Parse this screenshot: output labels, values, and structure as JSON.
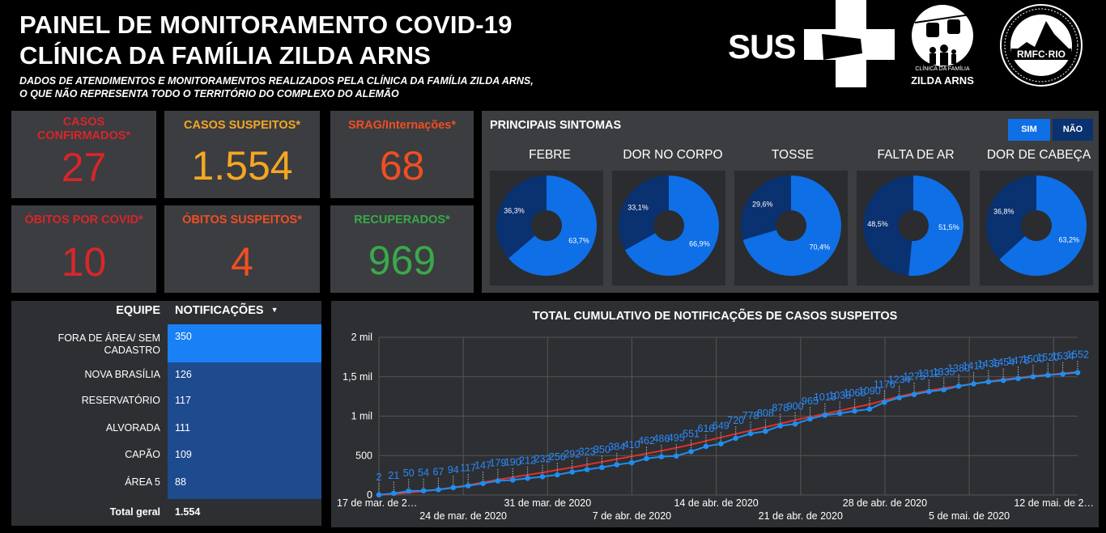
{
  "header": {
    "title_line1": "PAINEL DE MONITORAMENTO COVID-19",
    "title_line2": "CLÍNICA DA FAMÍLIA ZILDA ARNS",
    "subtitle_line1": "DADOS DE ATENDIMENTOS E MONITORAMENTOS REALIZADOS PELA CLÍNICA DA FAMÍLIA ZILDA ARNS,",
    "subtitle_line2": "O QUE NÃO REPRESENTA TODO O TERRITÓRIO DO COMPLEXO DO ALEMÃO"
  },
  "logos": {
    "sus": "SUS",
    "cf_small": "CLÍNICA DA FAMÍLIA",
    "cf_name": "ZILDA ARNS",
    "rmfc": "RMFC·RIO"
  },
  "kpis": [
    {
      "label": "CASOS CONFIRMADOS*",
      "value": "27",
      "color": "#d7262b"
    },
    {
      "label": "CASOS SUSPEITOS*",
      "value": "1.554",
      "color": "#f5a623"
    },
    {
      "label": "SRAG/Internações*",
      "value": "68",
      "color": "#f04e23"
    },
    {
      "label": "ÓBITOS POR COVID*",
      "value": "10",
      "color": "#d7262b"
    },
    {
      "label": "ÓBITOS SUSPEITOS*",
      "value": "4",
      "color": "#f04e23"
    },
    {
      "label": "RECUPERADOS*",
      "value": "969",
      "color": "#3aa84b"
    }
  ],
  "symptoms": {
    "title": "PRINCIPAIS SINTOMAS",
    "toggle_yes": "SIM",
    "toggle_no": "NÃO",
    "colors": {
      "sim": "#0f6fe6",
      "nao": "#0a3170"
    },
    "items": [
      {
        "label": "FEBRE",
        "sim": 63.7,
        "nao": 36.3,
        "sim_text": "63,7%",
        "nao_text": "36,3%"
      },
      {
        "label": "DOR NO CORPO",
        "sim": 66.9,
        "nao": 33.1,
        "sim_text": "66,9%",
        "nao_text": "33,1%"
      },
      {
        "label": "TOSSE",
        "sim": 70.4,
        "nao": 29.6,
        "sim_text": "70,4%",
        "nao_text": "29,6%"
      },
      {
        "label": "FALTA DE AR",
        "sim": 51.5,
        "nao": 48.5,
        "sim_text": "51,5%",
        "nao_text": "48,5%"
      },
      {
        "label": "DOR DE CABEÇA",
        "sim": 63.2,
        "nao": 36.8,
        "sim_text": "63,2%",
        "nao_text": "36,8%"
      }
    ]
  },
  "team_table": {
    "col_team": "EQUIPE",
    "col_notif": "NOTIFICAÇÕES",
    "rows": [
      {
        "name_line1": "FORA DE ÁREA/ SEM",
        "name_line2": "CADASTRO",
        "value": 350,
        "value_text": "350"
      },
      {
        "name_line1": "NOVA BRASÍLIA",
        "name_line2": "",
        "value": 126,
        "value_text": "126"
      },
      {
        "name_line1": "RESERVATÓRIO",
        "name_line2": "",
        "value": 117,
        "value_text": "117"
      },
      {
        "name_line1": "ALVORADA",
        "name_line2": "",
        "value": 111,
        "value_text": "111"
      },
      {
        "name_line1": "CAPÃO",
        "name_line2": "",
        "value": 109,
        "value_text": "109"
      },
      {
        "name_line1": "ÁREA 5",
        "name_line2": "",
        "value": 88,
        "value_text": "88"
      }
    ],
    "total_label": "Total geral",
    "total_value": "1.554"
  },
  "chart_data": {
    "type": "line",
    "title": "TOTAL CUMULATIVO DE NOTIFICAÇÕES DE CASOS SUSPEITOS",
    "ylim": [
      0,
      2000
    ],
    "y_ticks": [
      "0",
      "500",
      "1 mil",
      "1,5 mil",
      "2 mil"
    ],
    "x_tick_labels": [
      "17 de mar. de 2…",
      "24 de mar. de 2020",
      "31 de mar. de 2020",
      "7 de abr. de 2020",
      "14 de abr. de 2020",
      "21 de abr. de 2020",
      "28 de abr. de 2020",
      "5 de mai. de 2020",
      "12 de mai. de 2…"
    ],
    "x_start": "2020-03-17",
    "x_end": "2020-05-14",
    "series": [
      {
        "color": "#1f8ef1",
        "values": [
          2,
          21,
          50,
          54,
          67,
          94,
          117,
          147,
          179,
          190,
          212,
          232,
          256,
          292,
          323,
          350,
          384,
          410,
          462,
          486,
          495,
          551,
          616,
          649,
          720,
          778,
          808,
          878,
          900,
          965,
          1013,
          1035,
          1065,
          1090,
          1176,
          1234,
          1275,
          1312,
          1335,
          1380,
          1410,
          1435,
          1454,
          1478,
          1500,
          1520,
          1534,
          1552
        ]
      },
      {
        "color": "#e0302a",
        "trend": true,
        "values": [
          0,
          10,
          28,
          48,
          70,
          95,
          125,
          160,
          195,
          225,
          255,
          285,
          318,
          350,
          385,
          420,
          455,
          490,
          525,
          560,
          598,
          640,
          685,
          730,
          775,
          818,
          860,
          905,
          950,
          990,
          1030,
          1070,
          1110,
          1150,
          1200,
          1250,
          1290,
          1325,
          1355,
          1385,
          1410,
          1440,
          1465,
          1485,
          1510,
          1525,
          1542,
          1560
        ]
      }
    ]
  }
}
